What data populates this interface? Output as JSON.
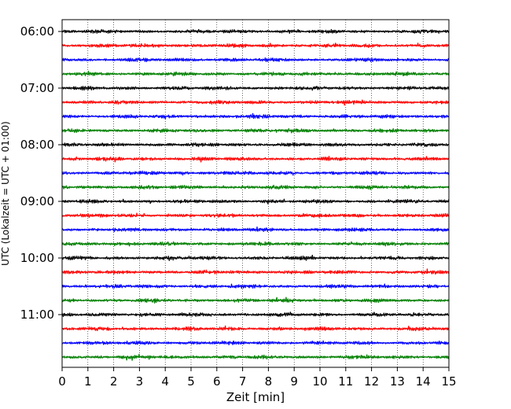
{
  "chart_data": {
    "type": "line",
    "title": "",
    "xlabel": "Zeit  [min]",
    "ylabel": "UTC (Lokalzeit = UTC + 01:00)",
    "xlim": [
      0,
      15
    ],
    "x_ticks": [
      "0",
      "1",
      "2",
      "3",
      "4",
      "5",
      "6",
      "7",
      "8",
      "9",
      "10",
      "11",
      "12",
      "13",
      "14",
      "15"
    ],
    "y_ticks": [
      "06:00",
      "07:00",
      "08:00",
      "09:00",
      "10:00",
      "11:00"
    ],
    "grid": "vertical dotted",
    "trace_minutes": 15,
    "series": [
      {
        "name": "06:00",
        "color": "#000000"
      },
      {
        "name": "06:15",
        "color": "#ff0000"
      },
      {
        "name": "06:30",
        "color": "#0000ff"
      },
      {
        "name": "06:45",
        "color": "#008000"
      },
      {
        "name": "07:00",
        "color": "#000000"
      },
      {
        "name": "07:15",
        "color": "#ff0000"
      },
      {
        "name": "07:30",
        "color": "#0000ff"
      },
      {
        "name": "07:45",
        "color": "#008000"
      },
      {
        "name": "08:00",
        "color": "#000000"
      },
      {
        "name": "08:15",
        "color": "#ff0000"
      },
      {
        "name": "08:30",
        "color": "#0000ff"
      },
      {
        "name": "08:45",
        "color": "#008000"
      },
      {
        "name": "09:00",
        "color": "#000000"
      },
      {
        "name": "09:15",
        "color": "#ff0000"
      },
      {
        "name": "09:30",
        "color": "#0000ff"
      },
      {
        "name": "09:45",
        "color": "#008000"
      },
      {
        "name": "10:00",
        "color": "#000000"
      },
      {
        "name": "10:15",
        "color": "#ff0000"
      },
      {
        "name": "10:30",
        "color": "#0000ff"
      },
      {
        "name": "10:45",
        "color": "#008000"
      },
      {
        "name": "11:00",
        "color": "#000000"
      },
      {
        "name": "11:15",
        "color": "#ff0000"
      },
      {
        "name": "11:30",
        "color": "#0000ff"
      },
      {
        "name": "11:45",
        "color": "#008000"
      }
    ]
  }
}
